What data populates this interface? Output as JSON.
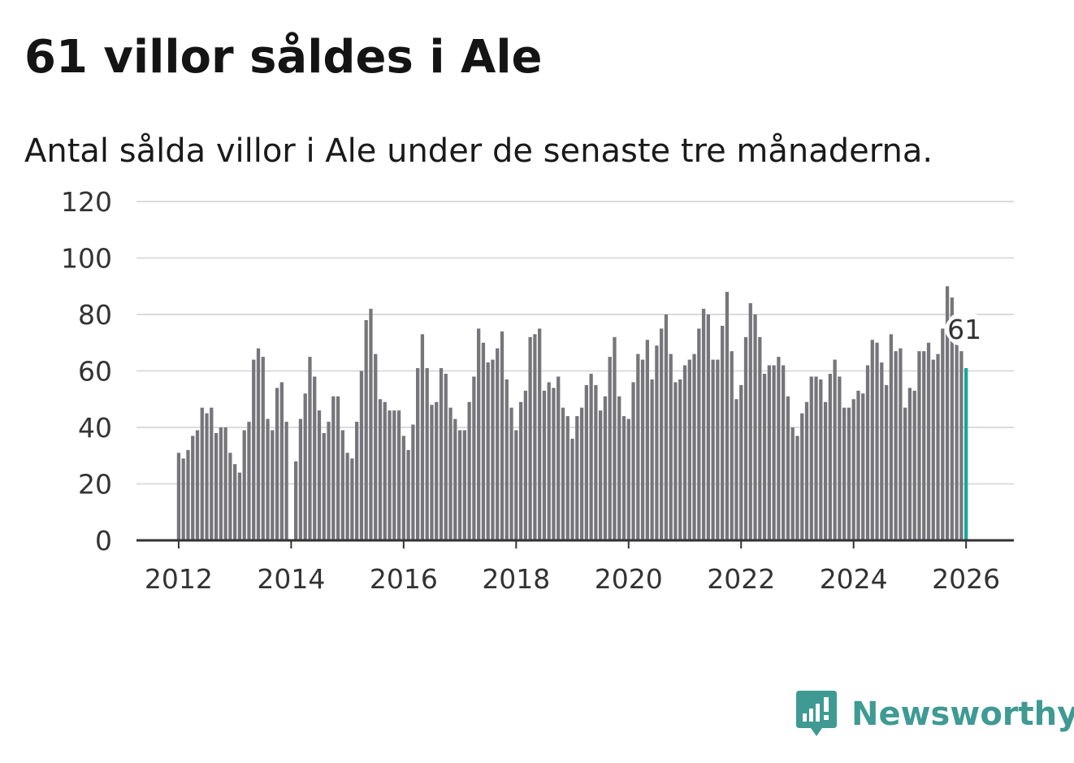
{
  "title": "61 villor såldes i Ale",
  "subtitle": "Antal sålda villor i Ale under de senaste tre månaderna.",
  "brand": {
    "name": "Newsworthy",
    "icon": "newsworthy-logo-icon",
    "color": "#3f9a93"
  },
  "colors": {
    "bar": "#76767a",
    "highlight": "#18a79a",
    "grid": "#dcdcdc",
    "axis": "#333333"
  },
  "chart_data": {
    "type": "bar",
    "title": "61 villor såldes i Ale",
    "subtitle": "Antal sålda villor i Ale under de senaste tre månaderna.",
    "xlabel": "",
    "ylabel": "",
    "ylim": [
      0,
      120
    ],
    "yticks": [
      0,
      20,
      40,
      60,
      80,
      100,
      120
    ],
    "xlim": [
      2011.25,
      2026.85
    ],
    "xticks": [
      2012,
      2014,
      2016,
      2018,
      2020,
      2022,
      2024,
      2026
    ],
    "xtick_labels": [
      "2012",
      "2014",
      "2016",
      "2018",
      "2020",
      "2022",
      "2024",
      "2026"
    ],
    "start_year": 2012,
    "start_month": 1,
    "values": [
      31,
      29,
      32,
      37,
      39,
      47,
      45,
      47,
      38,
      40,
      40,
      31,
      27,
      24,
      39,
      42,
      64,
      68,
      65,
      43,
      39,
      54,
      56,
      42,
      0,
      28,
      43,
      52,
      65,
      58,
      46,
      38,
      42,
      51,
      51,
      39,
      31,
      29,
      42,
      60,
      78,
      82,
      66,
      50,
      49,
      46,
      46,
      46,
      37,
      32,
      41,
      61,
      73,
      61,
      48,
      49,
      61,
      59,
      47,
      43,
      39,
      39,
      49,
      58,
      75,
      70,
      63,
      64,
      68,
      74,
      57,
      47,
      39,
      49,
      53,
      72,
      73,
      75,
      53,
      56,
      54,
      58,
      47,
      44,
      36,
      44,
      47,
      55,
      59,
      55,
      46,
      51,
      65,
      72,
      51,
      44,
      43,
      56,
      66,
      64,
      71,
      57,
      69,
      75,
      80,
      66,
      56,
      57,
      62,
      64,
      66,
      75,
      82,
      80,
      64,
      64,
      76,
      88,
      67,
      50,
      55,
      72,
      84,
      80,
      72,
      59,
      62,
      62,
      65,
      62,
      51,
      40,
      37,
      45,
      49,
      58,
      58,
      57,
      49,
      59,
      64,
      58,
      47,
      47,
      50,
      53,
      52,
      62,
      71,
      70,
      63,
      55,
      73,
      67,
      68,
      47,
      54,
      53,
      67,
      67,
      70,
      64,
      66,
      75,
      90,
      86,
      80,
      67,
      61
    ],
    "highlight_index": 168,
    "highlight_label": "61"
  }
}
